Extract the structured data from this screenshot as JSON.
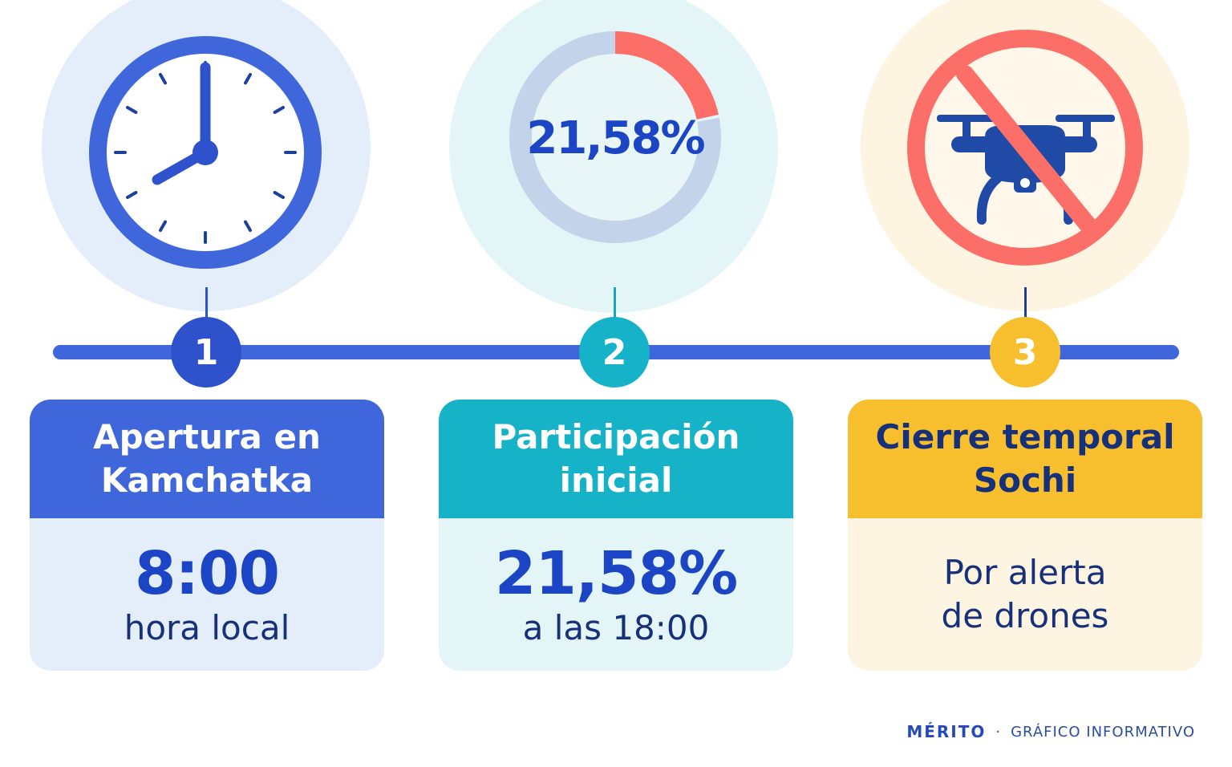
{
  "colors": {
    "blue": "#3f66da",
    "teal": "#16b2c7",
    "amber": "#f7bf2e",
    "coral": "#fb6f68",
    "navy": "#16307a"
  },
  "steps": [
    {
      "number": "1",
      "icon": "clock-icon",
      "title_lines": [
        "Apertura en",
        "Kamchatka"
      ],
      "value": "8:00",
      "caption": "hora local"
    },
    {
      "number": "2",
      "icon": "donut-progress-icon",
      "ring_percent": "21,58%",
      "ring_fraction": 0.2158,
      "title_lines": [
        "Participación",
        "inicial"
      ],
      "value": "21,58%",
      "caption": "a las 18:00"
    },
    {
      "number": "3",
      "icon": "no-drone-icon",
      "title_lines": [
        "Cierre temporal",
        "Sochi"
      ],
      "body_lines": [
        "Por alerta",
        "de drones"
      ]
    }
  ],
  "footer": {
    "brand": "MÉRITO",
    "separator": "·",
    "label": "GRÁFICO INFORMATIVO"
  }
}
